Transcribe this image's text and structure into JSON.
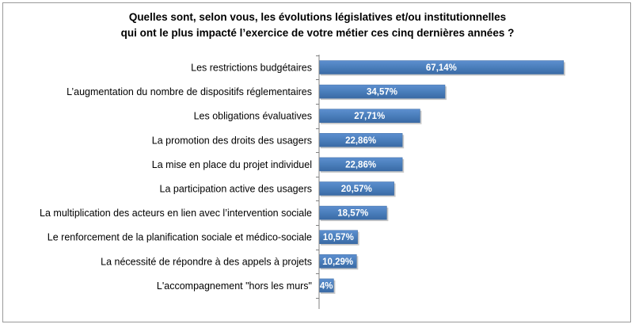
{
  "chart_data": {
    "type": "bar",
    "orientation": "horizontal",
    "title_line1": "Quelles sont, selon vous, les évolutions législatives et/ou institutionnelles",
    "title_line2": "qui ont le plus impacté l’exercice de votre métier ces cinq dernières années ?",
    "categories": [
      "Les restrictions budgétaires",
      "L’augmentation du nombre de dispositifs réglementaires",
      "Les obligations évaluatives",
      "La promotion des droits des usagers",
      "La mise en place du projet individuel",
      "La participation active des usagers",
      "La multiplication des acteurs en lien avec l’intervention sociale",
      "Le renforcement de la planification sociale et médico-sociale",
      "La nécessité de répondre à des appels à projets",
      "L'accompagnement \"hors les murs\""
    ],
    "values": [
      67.14,
      34.57,
      27.71,
      22.86,
      22.86,
      20.57,
      18.57,
      10.57,
      10.29,
      4
    ],
    "labels": [
      "67,14%",
      "34,57%",
      "27,71%",
      "22,86%",
      "22,86%",
      "20,57%",
      "18,57%",
      "10,57%",
      "10,29%",
      "4%"
    ],
    "bar_color": "#4a7ebb",
    "axis_color": "#808080",
    "grid": false,
    "legend": "none"
  }
}
